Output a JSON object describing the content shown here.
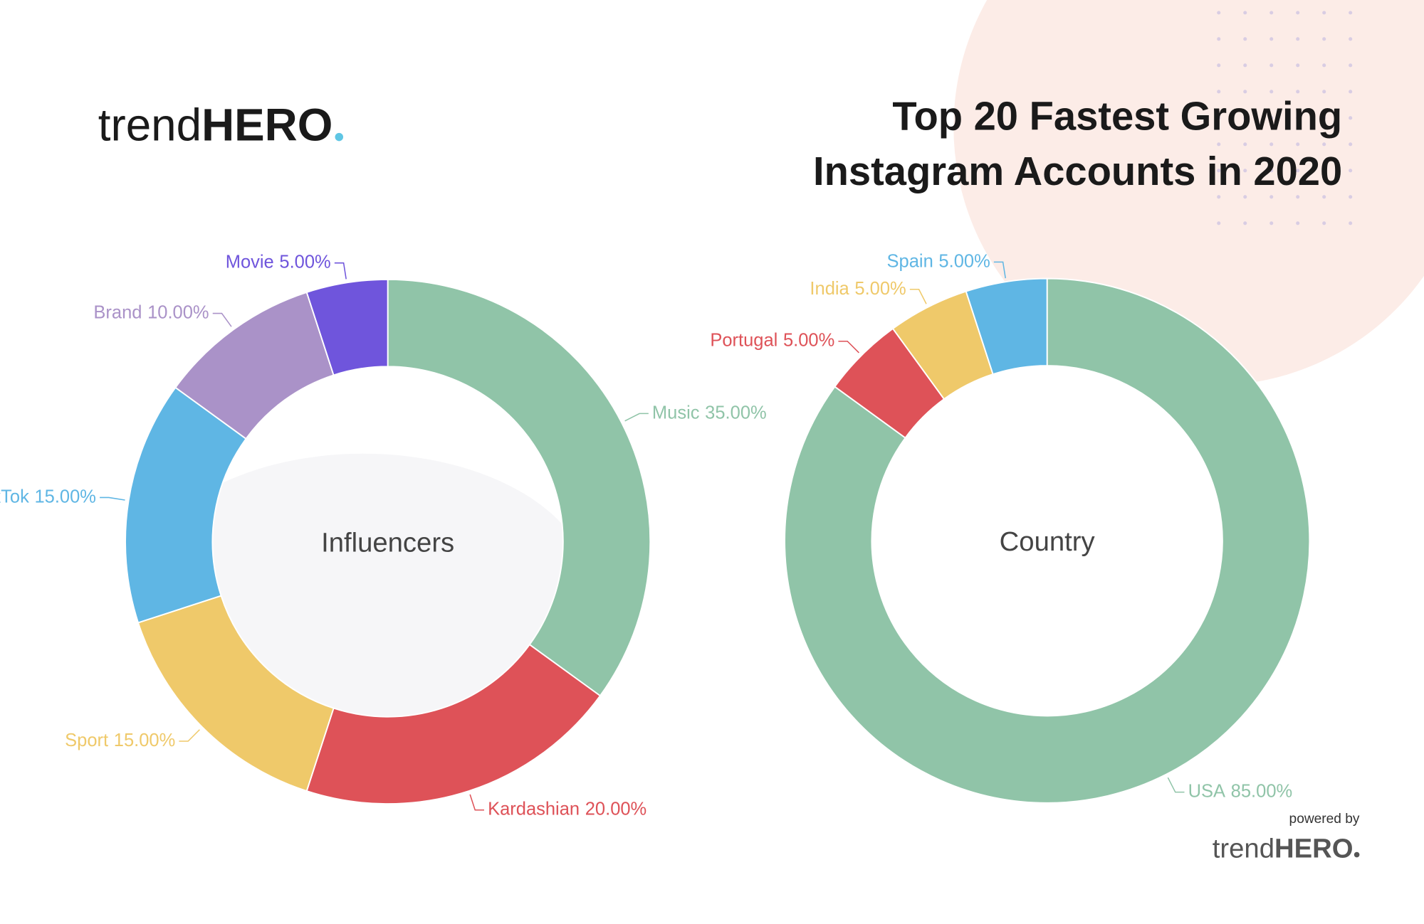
{
  "header": {
    "logo": {
      "light": "trend",
      "bold": "HERO"
    },
    "title_lines": [
      "Top 20 Fastest Growing",
      "Instagram Accounts in 2020"
    ]
  },
  "chart_data": [
    {
      "type": "donut",
      "center_label": "Influencers",
      "categories": [
        "Music",
        "Kardashian",
        "Sport",
        "TikTok",
        "Brand",
        "Movie"
      ],
      "values": [
        35,
        20,
        15,
        15,
        10,
        5
      ],
      "value_labels": [
        "35.00%",
        "20.00%",
        "15.00%",
        "15.00%",
        "10.00%",
        "5.00%"
      ],
      "colors": [
        "#90c4a8",
        "#de5258",
        "#efc96a",
        "#5fb6e4",
        "#aa92c8",
        "#6f55dc"
      ]
    },
    {
      "type": "donut",
      "center_label": "Country",
      "categories": [
        "USA",
        "Portugal",
        "India",
        "Spain"
      ],
      "values": [
        85,
        5,
        5,
        5
      ],
      "value_labels": [
        "85.00%",
        "5.00%",
        "5.00%",
        "5.00%"
      ],
      "colors": [
        "#90c4a8",
        "#de5258",
        "#efc96a",
        "#5fb6e4"
      ]
    }
  ],
  "footer": {
    "powered_by": "powered by",
    "logo": {
      "light": "trend",
      "bold": "HERO"
    }
  }
}
